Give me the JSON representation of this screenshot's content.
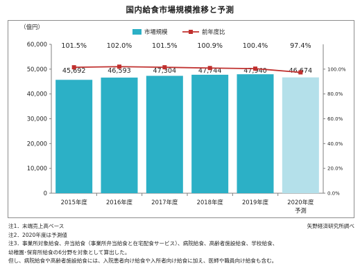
{
  "title": "国内給食市場規模推移と予測",
  "chart_data": {
    "type": "bar",
    "title": "国内給食市場規模推移と予測",
    "unit_label": "（億円）",
    "categories": [
      "2015年度",
      "2016年度",
      "2017年度",
      "2018年度",
      "2019年度",
      "2020年度"
    ],
    "category_sublabels": [
      "",
      "",
      "",
      "",
      "",
      "予測"
    ],
    "series": [
      {
        "name": "市場規模",
        "type": "bar",
        "axis": "left",
        "values": [
          45692,
          46593,
          47304,
          47744,
          47940,
          46674
        ],
        "value_labels": [
          "45,692",
          "46,593",
          "47,304",
          "47,744",
          "47,940",
          "46,674"
        ],
        "color": "#2cb0c6",
        "forecast_color": "#b4e0ea"
      },
      {
        "name": "前年度比",
        "type": "line",
        "axis": "right",
        "values": [
          101.5,
          102.0,
          101.5,
          100.9,
          100.4,
          97.4
        ],
        "value_labels": [
          "101.5%",
          "102.0%",
          "101.5%",
          "100.9%",
          "100.4%",
          "97.4%"
        ],
        "color": "#c0302e"
      }
    ],
    "left_axis": {
      "ylim": [
        0,
        60000
      ],
      "ticks": [
        "0",
        "10,000",
        "20,000",
        "30,000",
        "40,000",
        "50,000",
        "60,000"
      ]
    },
    "right_axis": {
      "ylim": [
        0,
        120
      ],
      "ticks": [
        "0.0%",
        "20.0%",
        "40.0%",
        "60.0%",
        "80.0%",
        "100.0%"
      ]
    },
    "grid": false,
    "legend_position": "top"
  },
  "notes": [
    "注1．末端売上高ベース",
    "注2．2020年度は予測値",
    "注3．事業所対象給食、弁当給食（事業所弁当給食と在宅配食サービス）、病院給食、高齢者施設給食、学校給食、",
    "幼稚園･保育所給食の6分野を対象として算出した。",
    "但し、病院給食や高齢者施設給食には、入院患者向け給食や入所者向け給食に加え、医師や職員向け給食も含む。"
  ],
  "source": "矢野経済研究所調べ"
}
